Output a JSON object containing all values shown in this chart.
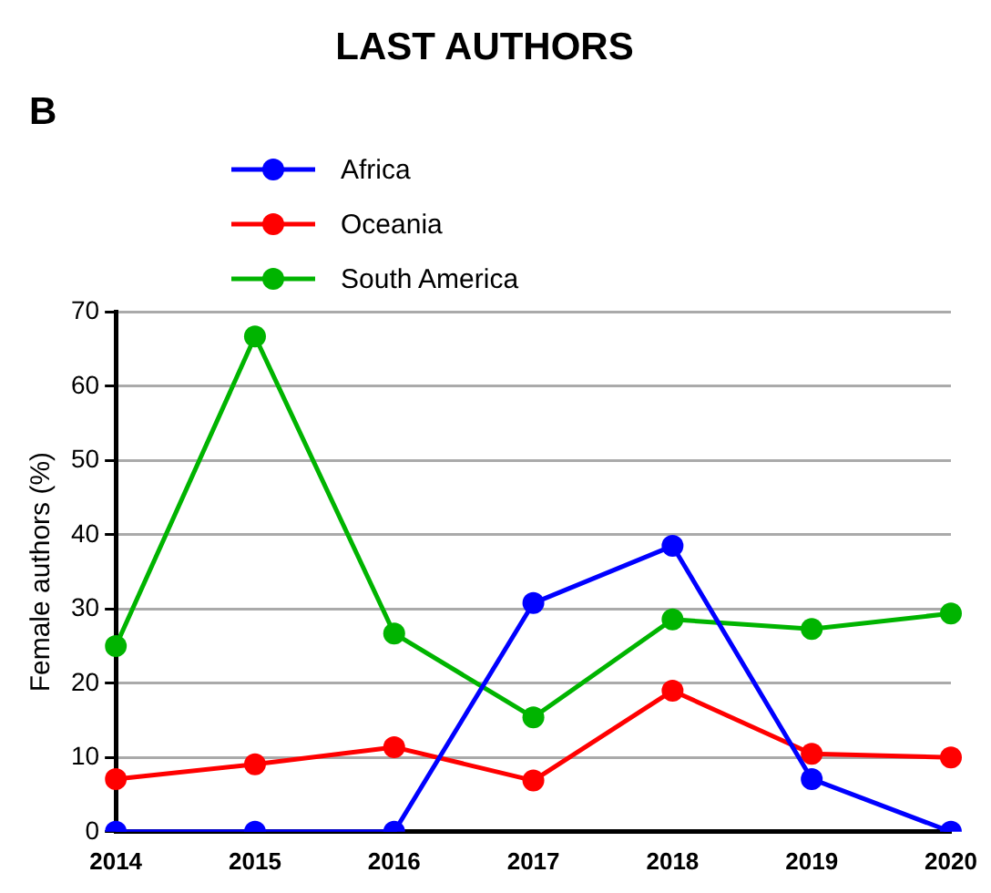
{
  "chart_data": {
    "type": "line",
    "title": "LAST AUTHORS",
    "ylabel": "Female authors (%)",
    "annotations": [
      "B"
    ],
    "categories": [
      "2014",
      "2015",
      "2016",
      "2017",
      "2018",
      "2019",
      "2020"
    ],
    "series": [
      {
        "name": "Africa",
        "color": "#0000ff",
        "values": [
          0,
          0,
          0,
          30.8,
          38.5,
          7.1,
          0
        ]
      },
      {
        "name": "Oceania",
        "color": "#ff0000",
        "values": [
          7.1,
          9.1,
          11.4,
          6.9,
          19.0,
          10.5,
          10.0
        ]
      },
      {
        "name": "South America",
        "color": "#00b400",
        "values": [
          25,
          66.7,
          26.7,
          15.4,
          28.6,
          27.3,
          29.4
        ]
      }
    ],
    "ylim": [
      0,
      70
    ],
    "yticks": [
      0,
      10,
      20,
      30,
      40,
      50,
      60,
      70
    ],
    "grid": "y",
    "legend": "top left",
    "marker": "circle",
    "line_style": "solid"
  }
}
